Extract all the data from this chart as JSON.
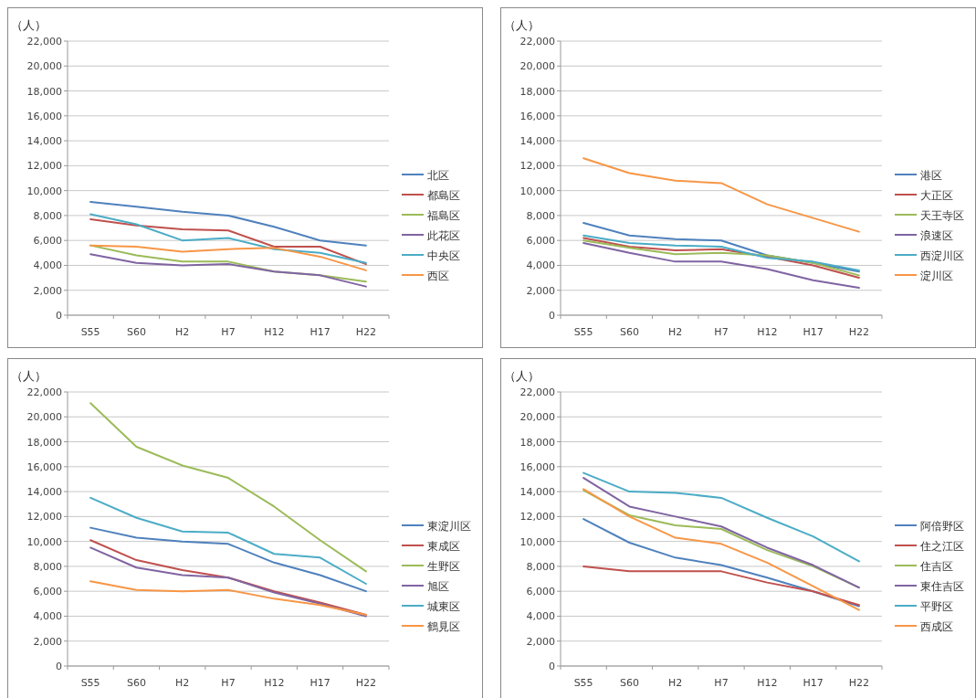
{
  "chart_data": [
    {
      "type": "line",
      "ylabel": "（人）",
      "categories": [
        "S55",
        "S60",
        "H2",
        "H7",
        "H12",
        "H17",
        "H22"
      ],
      "ylim": [
        0,
        22000
      ],
      "yticks": [
        {
          "value": 0,
          "label": "0"
        },
        {
          "value": 2000,
          "label": "2,000"
        },
        {
          "value": 4000,
          "label": "4,000"
        },
        {
          "value": 6000,
          "label": "6,000"
        },
        {
          "value": 8000,
          "label": "8,000"
        },
        {
          "value": 10000,
          "label": "10,000"
        },
        {
          "value": 12000,
          "label": "12,000"
        },
        {
          "value": 14000,
          "label": "14,000"
        },
        {
          "value": 16000,
          "label": "16,000"
        },
        {
          "value": 18000,
          "label": "18,000"
        },
        {
          "value": 20000,
          "label": "20,000"
        },
        {
          "value": 22000,
          "label": "22,000"
        }
      ],
      "grid": "y",
      "legend": "right",
      "series": [
        {
          "name": "北区",
          "color": "#4f81bd",
          "values": [
            9100,
            8700,
            8300,
            8000,
            7100,
            6000,
            5600
          ]
        },
        {
          "name": "都島区",
          "color": "#c0504d",
          "values": [
            7700,
            7200,
            6900,
            6800,
            5500,
            5500,
            4100
          ]
        },
        {
          "name": "福島区",
          "color": "#9bbb59",
          "values": [
            5600,
            4800,
            4300,
            4300,
            3500,
            3200,
            2700
          ]
        },
        {
          "name": "此花区",
          "color": "#8064a2",
          "values": [
            4900,
            4200,
            4000,
            4100,
            3500,
            3200,
            2300
          ]
        },
        {
          "name": "中央区",
          "color": "#4bacc6",
          "values": [
            8100,
            7300,
            6000,
            6200,
            5300,
            5000,
            4200
          ]
        },
        {
          "name": "西区",
          "color": "#f79646",
          "values": [
            5600,
            5500,
            5100,
            5300,
            5400,
            4700,
            3600
          ]
        }
      ]
    },
    {
      "type": "line",
      "ylabel": "（人）",
      "categories": [
        "S55",
        "S60",
        "H2",
        "H7",
        "H12",
        "H17",
        "H22"
      ],
      "ylim": [
        0,
        22000
      ],
      "yticks": [
        {
          "value": 0,
          "label": "0"
        },
        {
          "value": 2000,
          "label": "2,000"
        },
        {
          "value": 4000,
          "label": "4,000"
        },
        {
          "value": 6000,
          "label": "6,000"
        },
        {
          "value": 8000,
          "label": "8,000"
        },
        {
          "value": 10000,
          "label": "10,000"
        },
        {
          "value": 12000,
          "label": "12,000"
        },
        {
          "value": 14000,
          "label": "14,000"
        },
        {
          "value": 16000,
          "label": "16,000"
        },
        {
          "value": 18000,
          "label": "18,000"
        },
        {
          "value": 20000,
          "label": "20,000"
        },
        {
          "value": 22000,
          "label": "22,000"
        }
      ],
      "grid": "y",
      "legend": "right",
      "series": [
        {
          "name": "港区",
          "color": "#4f81bd",
          "values": [
            7400,
            6400,
            6100,
            6000,
            4800,
            4200,
            3500
          ]
        },
        {
          "name": "大正区",
          "color": "#c0504d",
          "values": [
            6200,
            5500,
            5200,
            5300,
            4700,
            4000,
            3000
          ]
        },
        {
          "name": "天王寺区",
          "color": "#9bbb59",
          "values": [
            6000,
            5400,
            4900,
            5000,
            4800,
            4200,
            3200
          ]
        },
        {
          "name": "浪速区",
          "color": "#8064a2",
          "values": [
            5800,
            5000,
            4300,
            4300,
            3700,
            2800,
            2200
          ]
        },
        {
          "name": "西淀川区",
          "color": "#4bacc6",
          "values": [
            6400,
            5800,
            5600,
            5500,
            4600,
            4300,
            3600
          ]
        },
        {
          "name": "淀川区",
          "color": "#f79646",
          "values": [
            12600,
            11400,
            10800,
            10600,
            8900,
            7800,
            6700
          ]
        }
      ]
    },
    {
      "type": "line",
      "ylabel": "（人）",
      "categories": [
        "S55",
        "S60",
        "H2",
        "H7",
        "H12",
        "H17",
        "H22"
      ],
      "ylim": [
        0,
        22000
      ],
      "yticks": [
        {
          "value": 0,
          "label": "0"
        },
        {
          "value": 2000,
          "label": "2,000"
        },
        {
          "value": 4000,
          "label": "4,000"
        },
        {
          "value": 6000,
          "label": "6,000"
        },
        {
          "value": 8000,
          "label": "8,000"
        },
        {
          "value": 10000,
          "label": "10,000"
        },
        {
          "value": 12000,
          "label": "12,000"
        },
        {
          "value": 14000,
          "label": "14,000"
        },
        {
          "value": 16000,
          "label": "16,000"
        },
        {
          "value": 18000,
          "label": "18,000"
        },
        {
          "value": 20000,
          "label": "20,000"
        },
        {
          "value": 22000,
          "label": "22,000"
        }
      ],
      "grid": "y",
      "legend": "right",
      "series": [
        {
          "name": "東淀川区",
          "color": "#4f81bd",
          "values": [
            11100,
            10300,
            10000,
            9800,
            8300,
            7300,
            6000
          ]
        },
        {
          "name": "東成区",
          "color": "#c0504d",
          "values": [
            10100,
            8500,
            7700,
            7100,
            6000,
            5100,
            4100
          ]
        },
        {
          "name": "生野区",
          "color": "#9bbb59",
          "values": [
            21100,
            17600,
            16100,
            15100,
            12800,
            10100,
            7600
          ]
        },
        {
          "name": "旭区",
          "color": "#8064a2",
          "values": [
            9500,
            7900,
            7300,
            7100,
            5900,
            5000,
            4000
          ]
        },
        {
          "name": "城東区",
          "color": "#4bacc6",
          "values": [
            13500,
            11900,
            10800,
            10700,
            9000,
            8700,
            6600
          ]
        },
        {
          "name": "鶴見区",
          "color": "#f79646",
          "values": [
            6800,
            6100,
            6000,
            6100,
            5400,
            4900,
            4100
          ]
        }
      ]
    },
    {
      "type": "line",
      "ylabel": "（人）",
      "categories": [
        "S55",
        "S60",
        "H2",
        "H7",
        "H12",
        "H17",
        "H22"
      ],
      "ylim": [
        0,
        22000
      ],
      "yticks": [
        {
          "value": 0,
          "label": "0"
        },
        {
          "value": 2000,
          "label": "2,000"
        },
        {
          "value": 4000,
          "label": "4,000"
        },
        {
          "value": 6000,
          "label": "6,000"
        },
        {
          "value": 8000,
          "label": "8,000"
        },
        {
          "value": 10000,
          "label": "10,000"
        },
        {
          "value": 12000,
          "label": "12,000"
        },
        {
          "value": 14000,
          "label": "14,000"
        },
        {
          "value": 16000,
          "label": "16,000"
        },
        {
          "value": 18000,
          "label": "18,000"
        },
        {
          "value": 20000,
          "label": "20,000"
        },
        {
          "value": 22000,
          "label": "22,000"
        }
      ],
      "grid": "y",
      "legend": "right",
      "series": [
        {
          "name": "阿倍野区",
          "color": "#4f81bd",
          "values": [
            11800,
            9900,
            8700,
            8100,
            7100,
            6000,
            4800
          ]
        },
        {
          "name": "住之江区",
          "color": "#c0504d",
          "values": [
            8000,
            7600,
            7600,
            7600,
            6700,
            6000,
            4900
          ]
        },
        {
          "name": "住吉区",
          "color": "#9bbb59",
          "values": [
            14100,
            12100,
            11300,
            11000,
            9300,
            8000,
            6300
          ]
        },
        {
          "name": "東住吉区",
          "color": "#8064a2",
          "values": [
            15100,
            12800,
            12000,
            11200,
            9500,
            8100,
            6300
          ]
        },
        {
          "name": "平野区",
          "color": "#4bacc6",
          "values": [
            15500,
            14000,
            13900,
            13500,
            11900,
            10400,
            8400
          ]
        },
        {
          "name": "西成区",
          "color": "#f79646",
          "values": [
            14200,
            12000,
            10300,
            9800,
            8300,
            6400,
            4500
          ]
        }
      ]
    }
  ]
}
